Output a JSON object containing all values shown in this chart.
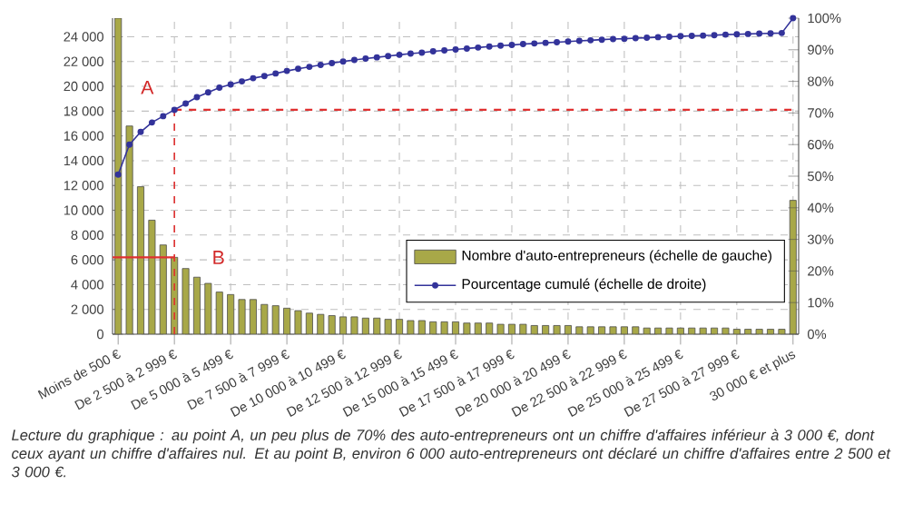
{
  "chart_data": {
    "type": "bar",
    "categories": [
      "Moins de 500 €",
      null,
      null,
      null,
      null,
      "De 2 500 à 2 999 €",
      null,
      null,
      null,
      null,
      "De 5 000 à 5 499 €",
      null,
      null,
      null,
      null,
      "De 7 500 à 7 999 €",
      null,
      null,
      null,
      null,
      "De 10 000 à 10 499 €",
      null,
      null,
      null,
      null,
      "De 12 500 à 12 999 €",
      null,
      null,
      null,
      null,
      "De 15 000 à 15 499 €",
      null,
      null,
      null,
      null,
      "De 17 500 à 17 999 €",
      null,
      null,
      null,
      null,
      "De 20 000 à 20 499 €",
      null,
      null,
      null,
      null,
      "De 22 500 à 22 999 €",
      null,
      null,
      null,
      null,
      "De 25 000 à 25 499 €",
      null,
      null,
      null,
      null,
      "De 27 500 à 27 999 €",
      null,
      null,
      null,
      null,
      "30 000 € et plus"
    ],
    "series": [
      {
        "name": "Nombre d'auto-entrepreneurs (échelle de gauche)",
        "color": "#a8a848",
        "values": [
          25500,
          16800,
          11900,
          9200,
          7200,
          6200,
          5300,
          4600,
          4100,
          3400,
          3200,
          2800,
          2800,
          2400,
          2300,
          2100,
          1900,
          1700,
          1600,
          1500,
          1400,
          1400,
          1300,
          1300,
          1200,
          1200,
          1100,
          1100,
          1000,
          1000,
          1000,
          900,
          900,
          900,
          800,
          800,
          800,
          700,
          700,
          700,
          700,
          600,
          600,
          600,
          600,
          600,
          600,
          500,
          500,
          500,
          500,
          500,
          500,
          500,
          500,
          400,
          400,
          400,
          400,
          400,
          10800
        ]
      },
      {
        "name": "Pourcentage cumulé (échelle de droite)",
        "type": "line",
        "axis": "y2",
        "color": "#33339a",
        "marker": "circle",
        "values": [
          50.5,
          60,
          64,
          67,
          69,
          71,
          73,
          75,
          76.5,
          78,
          79,
          80,
          81,
          81.7,
          82.5,
          83.3,
          84,
          84.6,
          85.2,
          85.8,
          86.3,
          86.8,
          87.2,
          87.6,
          88,
          88.4,
          88.8,
          89.1,
          89.5,
          89.8,
          90.1,
          90.4,
          90.7,
          91,
          91.3,
          91.5,
          91.8,
          92,
          92.2,
          92.4,
          92.6,
          92.8,
          93,
          93.2,
          93.4,
          93.5,
          93.7,
          93.8,
          94,
          94.1,
          94.3,
          94.4,
          94.5,
          94.6,
          94.8,
          94.9,
          95,
          95.1,
          95.2,
          95.3,
          100
        ]
      }
    ],
    "ylim": [
      0,
      25500
    ],
    "yticks": [
      0,
      {
        "value": 2000,
        "label": "2 000"
      },
      {
        "value": 4000,
        "label": "4 000"
      },
      {
        "value": 6000,
        "label": "6 000"
      },
      {
        "value": 8000,
        "label": "8 000"
      },
      {
        "value": 10000,
        "label": "10 000"
      },
      {
        "value": 12000,
        "label": "12 000"
      },
      {
        "value": 14000,
        "label": "14 000"
      },
      {
        "value": 16000,
        "label": "16 000"
      },
      {
        "value": 18000,
        "label": "18 000"
      },
      {
        "value": 20000,
        "label": "20 000"
      },
      {
        "value": 22000,
        "label": "22 000"
      },
      {
        "value": 24000,
        "label": "24 000"
      }
    ],
    "y2lim": [
      0,
      100
    ],
    "y2ticks": [
      {
        "value": 0,
        "label": "0%"
      },
      {
        "value": 10,
        "label": "10%"
      },
      {
        "value": 20,
        "label": "20%"
      },
      {
        "value": 30,
        "label": "30%"
      },
      {
        "value": 40,
        "label": "40%"
      },
      {
        "value": 50,
        "label": "50%"
      },
      {
        "value": 60,
        "label": "60%"
      },
      {
        "value": 70,
        "label": "70%"
      },
      {
        "value": 80,
        "label": "80%"
      },
      {
        "value": 90,
        "label": "90%"
      },
      {
        "value": 100,
        "label": "100%"
      }
    ],
    "grid": true,
    "legend": "bottom right",
    "ref_lines": [
      {
        "axis": "x",
        "value": "De 2 500 à 2 999 €",
        "color": "#e03030",
        "line_style": "dashed"
      },
      {
        "axis": "y2",
        "value": 71,
        "color": "#e03030",
        "line_style": "dashed"
      },
      {
        "axis": "y",
        "value": 6200,
        "color": "#e03030",
        "line_style": "solid"
      }
    ],
    "annotations": [
      {
        "text": "A",
        "x": "De 2 500 à 2 999 €",
        "y": 18100
      },
      {
        "text": "B",
        "x": "De 2 500 à 2 999 €",
        "y": 6200
      },
      "*Lecture du graphique : au point A, un peu plus de 70% des auto-entrepreneurs ont un chiffre d'affaires inférieur à 3 000 €, dont ceux ayant un chiffre d'affaires nul. Et au point B, environ 6 000 auto-entrepreneurs ont déclaré un chiffre d'affaires entre 2 500 et 3 000 €.*"
    ]
  }
}
